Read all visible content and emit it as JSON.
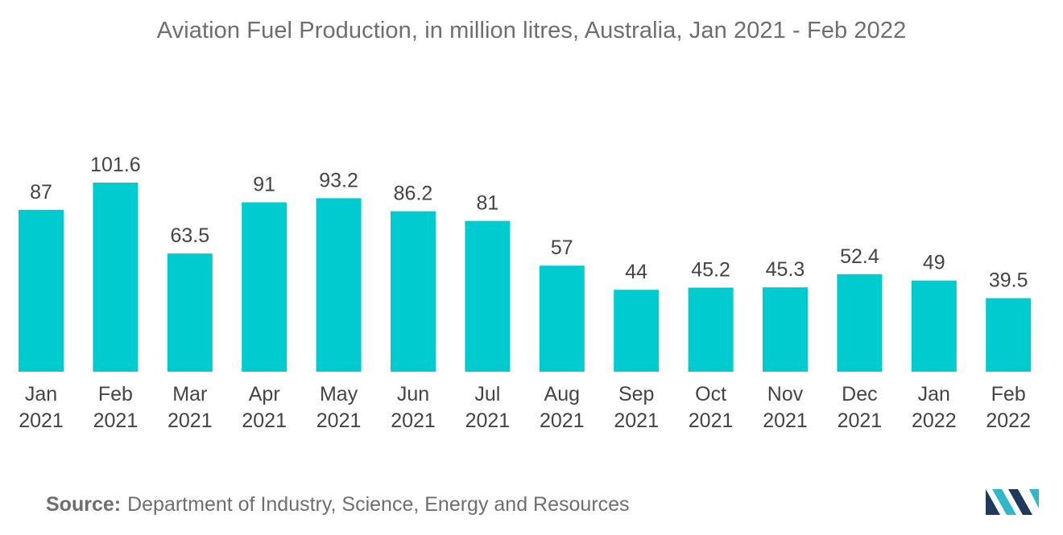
{
  "chart_data": {
    "type": "bar",
    "title": "Aviation Fuel Production, in million litres, Australia, Jan 2021 - Feb 2022",
    "xlabel": "",
    "ylabel": "",
    "categories": [
      [
        "Jan",
        "2021"
      ],
      [
        "Feb",
        "2021"
      ],
      [
        "Mar",
        "2021"
      ],
      [
        "Apr",
        "2021"
      ],
      [
        "May",
        "2021"
      ],
      [
        "Jun",
        "2021"
      ],
      [
        "Jul",
        "2021"
      ],
      [
        "Aug",
        "2021"
      ],
      [
        "Sep",
        "2021"
      ],
      [
        "Oct",
        "2021"
      ],
      [
        "Nov",
        "2021"
      ],
      [
        "Dec",
        "2021"
      ],
      [
        "Jan",
        "2022"
      ],
      [
        "Feb",
        "2022"
      ]
    ],
    "values": [
      87,
      101.6,
      63.5,
      91,
      93.2,
      86.2,
      81,
      57,
      44,
      45.2,
      45.3,
      52.4,
      49,
      39.5
    ],
    "value_labels": [
      "87",
      "101.6",
      "63.5",
      "91",
      "93.2",
      "86.2",
      "81",
      "57",
      "44",
      "45.2",
      "45.3",
      "52.4",
      "49",
      "39.5"
    ],
    "ylim": [
      0,
      101.6
    ],
    "grid": false,
    "legend": "none",
    "bar_color": "#00cccf"
  },
  "footer": {
    "source_key": "Source:",
    "source_text": "Department of Industry, Science, Energy and Resources"
  },
  "logo": {
    "icon": "mordor-intelligence-logo-icon",
    "colors": [
      "#1f3b5c",
      "#2fb8c9"
    ]
  }
}
